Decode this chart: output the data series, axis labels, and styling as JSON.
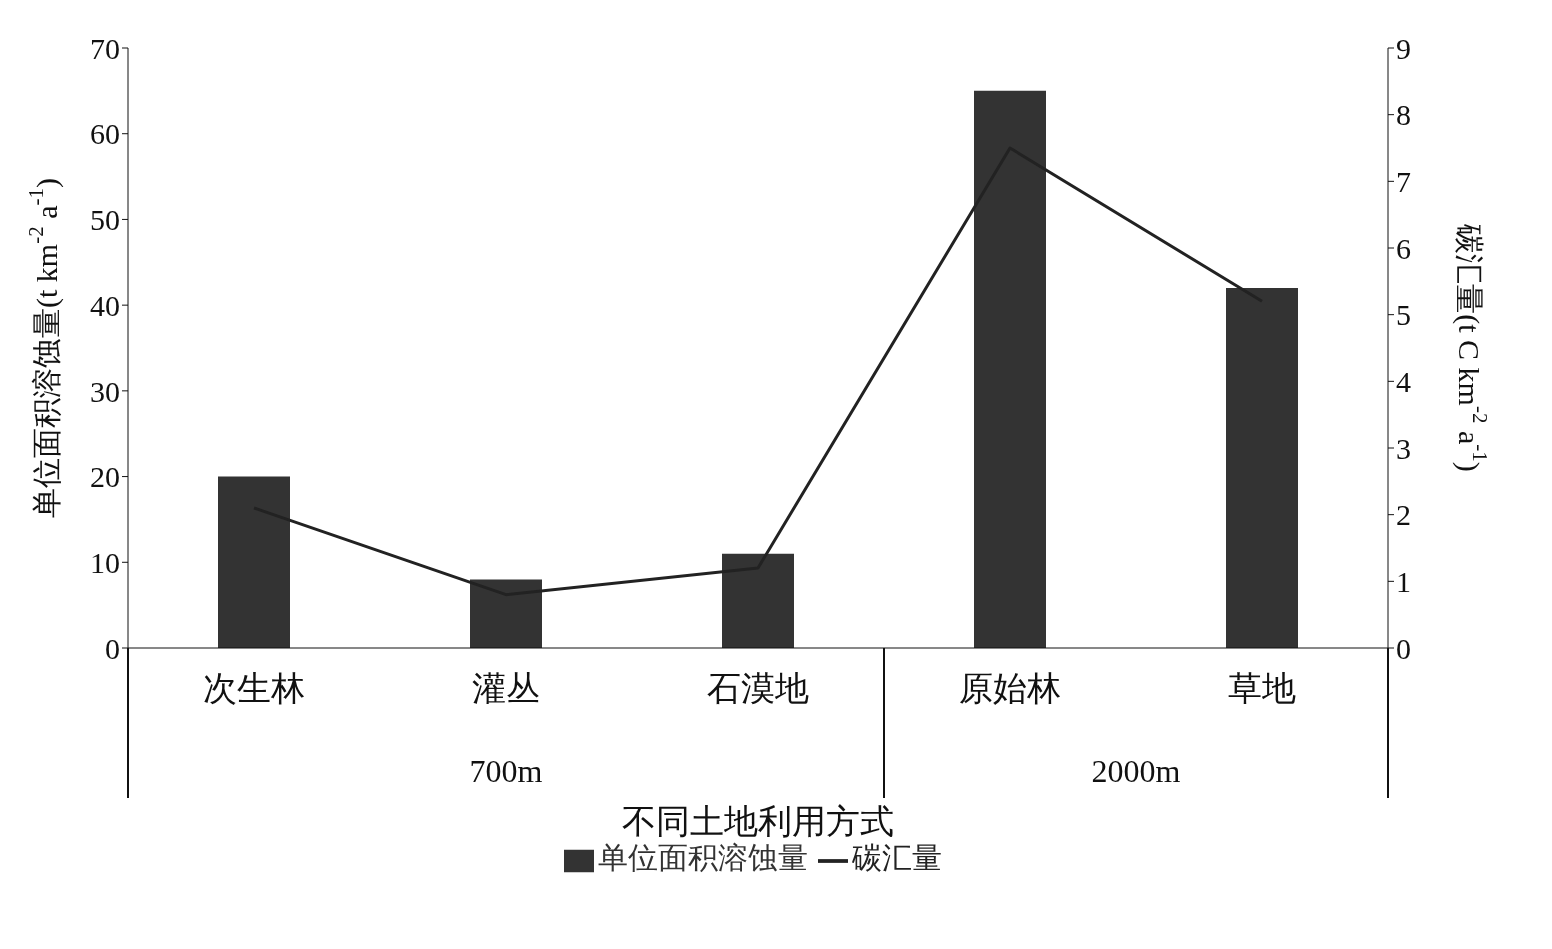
{
  "chart_data": {
    "type": "bar",
    "xlabel": "不同土地利用方式",
    "ylabel": "单位面积溶蚀量(t km$^{-2}$ a$^{-1}$)",
    "y2label": "碳汇量(t C km$^{-2}$ a$^{-1}$)",
    "categories": [
      "次生林",
      "灌丛",
      "石漠地",
      "原始林",
      "草地"
    ],
    "series": [
      {
        "name": "单位面积溶蚀量",
        "color": "#333333",
        "values": [
          20,
          8,
          11,
          65,
          42
        ]
      },
      {
        "name": "碳汇量",
        "type": "line",
        "axis": "y2",
        "color": "#222222",
        "values": [
          2.1,
          0.8,
          1.2,
          7.5,
          5.2
        ]
      }
    ],
    "ylim": [
      0,
      70
    ],
    "yticks": [
      0,
      10,
      20,
      30,
      40,
      50,
      60,
      70
    ],
    "y2lim": [
      0,
      9
    ],
    "y2ticks": [
      0,
      1,
      2,
      3,
      4,
      5,
      6,
      7,
      8,
      9
    ],
    "annotations": [
      "700m",
      "2000m"
    ],
    "legend": "bottom",
    "marker": "none",
    "line_style": "solid"
  }
}
